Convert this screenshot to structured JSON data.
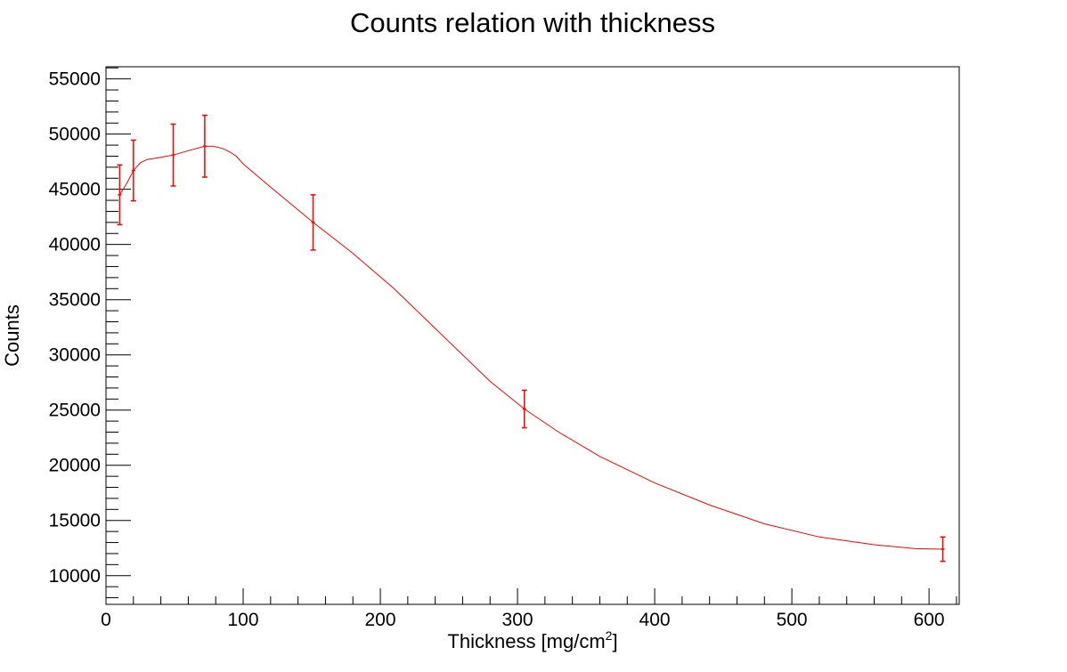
{
  "chart_data": {
    "type": "scatter",
    "title": "Counts relation with thickness",
    "xlabel": "Thickness [mg/cm",
    "xlabel_sup": "2",
    "xlabel_end": "]",
    "ylabel": "Counts",
    "xlim": [
      0,
      622
    ],
    "ylim": [
      7400,
      56100
    ],
    "x_ticks": [
      0,
      100,
      200,
      300,
      400,
      500,
      600
    ],
    "y_ticks": [
      10000,
      15000,
      20000,
      25000,
      30000,
      35000,
      40000,
      45000,
      50000,
      55000
    ],
    "grid": false,
    "series": [
      {
        "kind": "points_with_error_bars",
        "color": "#ff0000",
        "x": [
          10,
          20,
          49,
          72,
          151,
          305,
          610
        ],
        "y": [
          44500,
          46700,
          48100,
          48900,
          42000,
          25100,
          12400
        ],
        "yerr": [
          2700,
          2750,
          2800,
          2800,
          2500,
          1700,
          1100
        ]
      },
      {
        "kind": "fit_curve",
        "color": "#ff0000",
        "x": [
          10,
          15,
          20,
          25,
          30,
          40,
          49,
          60,
          72,
          78,
          85,
          90,
          95,
          100,
          120,
          151,
          180,
          210,
          250,
          280,
          305,
          330,
          360,
          400,
          440,
          480,
          520,
          560,
          590,
          610
        ],
        "y": [
          44500,
          45500,
          46700,
          47400,
          47700,
          47900,
          48100,
          48500,
          48900,
          48900,
          48700,
          48400,
          48000,
          47300,
          45200,
          42000,
          39200,
          36000,
          31200,
          27600,
          25100,
          23000,
          20800,
          18400,
          16400,
          14700,
          13500,
          12800,
          12450,
          12400
        ]
      }
    ]
  }
}
